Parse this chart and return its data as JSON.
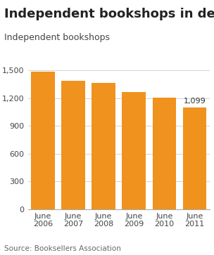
{
  "title": "Independent bookshops in decline",
  "subtitle": "Independent bookshops",
  "source": "Source: Booksellers Association",
  "categories": [
    "June\n2006",
    "June\n2007",
    "June\n2008",
    "June\n2009",
    "June\n2010",
    "June\n2011"
  ],
  "values": [
    1487,
    1390,
    1365,
    1270,
    1205,
    1099
  ],
  "bar_color": "#F0921E",
  "annotation_value": "1,099",
  "annotation_bar_index": 5,
  "ylim": [
    0,
    1600
  ],
  "yticks": [
    0,
    300,
    600,
    900,
    1200,
    1500
  ],
  "background_color": "#ffffff",
  "title_fontsize": 13,
  "subtitle_fontsize": 9,
  "tick_fontsize": 8,
  "source_fontsize": 7.5,
  "annotation_fontsize": 8
}
